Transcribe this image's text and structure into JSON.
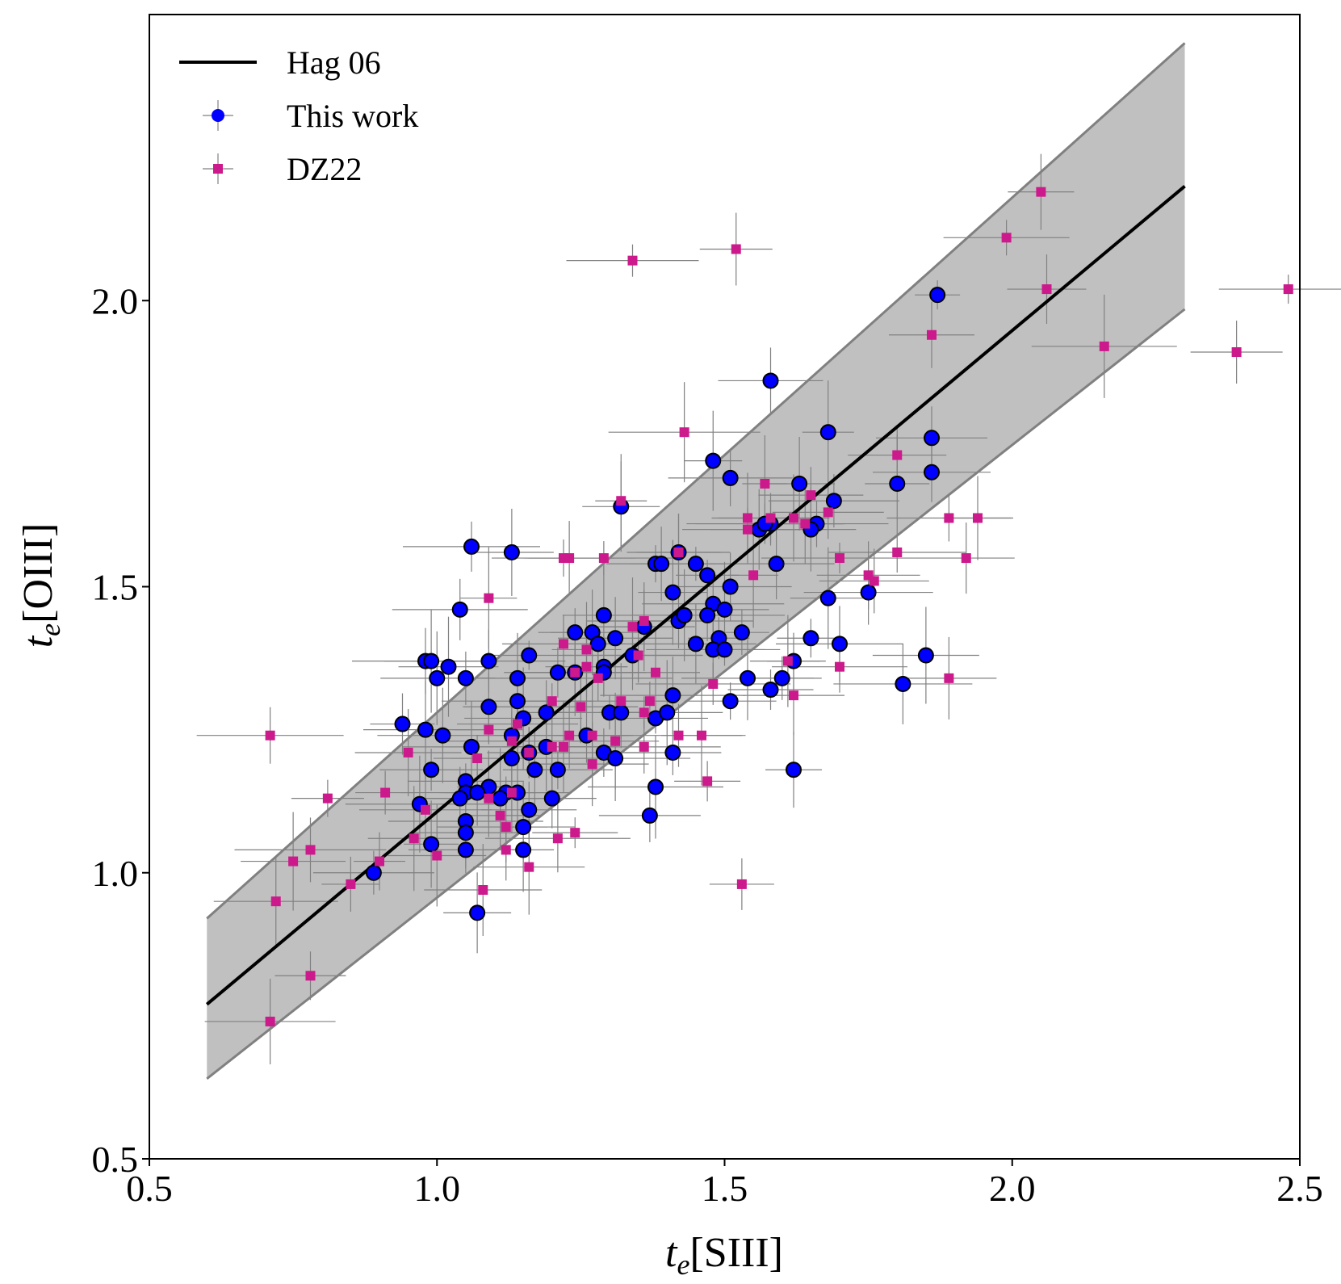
{
  "chart_data": {
    "type": "scatter",
    "title": "",
    "xlabel": {
      "var": "t",
      "sub": "e",
      "rest": "[SIII]"
    },
    "ylabel": {
      "var": "t",
      "sub": "e",
      "rest": "[OIII]"
    },
    "xlim": [
      0.5,
      2.5
    ],
    "ylim": [
      0.5,
      2.5
    ],
    "xticks": [
      0.5,
      1.0,
      1.5,
      2.0,
      2.5
    ],
    "xtick_labels": [
      "0.5",
      "1.0",
      "1.5",
      "2.0",
      "2.5"
    ],
    "yticks": [
      0.5,
      1.0,
      1.5,
      2.0
    ],
    "ytick_labels": [
      "0.5",
      "1.0",
      "1.5",
      "2.0"
    ],
    "grid": false,
    "legend_position": "top-left",
    "colors": {
      "band": "#c0c0c0",
      "band_edge": "#808080",
      "relation": "#000000",
      "this_work": "#0000ff",
      "dz22": "#cc1a8c",
      "errorbar": "#808080"
    },
    "relation": {
      "name": "Hag 06",
      "x": [
        0.6,
        2.3
      ],
      "y": [
        0.77,
        2.2
      ],
      "band_upper": [
        0.92,
        2.45
      ],
      "band_lower": [
        0.64,
        1.985
      ]
    },
    "series": [
      {
        "name": "This work",
        "marker": "circle",
        "points": [
          [
            1.87,
            2.01
          ],
          [
            1.58,
            1.86
          ],
          [
            1.68,
            1.77
          ],
          [
            1.86,
            1.76
          ],
          [
            1.48,
            1.72
          ],
          [
            1.86,
            1.7
          ],
          [
            1.8,
            1.68
          ],
          [
            1.51,
            1.69
          ],
          [
            1.63,
            1.68
          ],
          [
            1.69,
            1.65
          ],
          [
            1.32,
            1.64
          ],
          [
            1.06,
            1.57
          ],
          [
            1.13,
            1.56
          ],
          [
            1.66,
            1.61
          ],
          [
            1.65,
            1.6
          ],
          [
            1.58,
            1.61
          ],
          [
            1.56,
            1.6
          ],
          [
            1.57,
            1.61
          ],
          [
            1.42,
            1.56
          ],
          [
            1.38,
            1.54
          ],
          [
            1.39,
            1.54
          ],
          [
            1.45,
            1.54
          ],
          [
            1.59,
            1.54
          ],
          [
            1.47,
            1.52
          ],
          [
            1.51,
            1.5
          ],
          [
            1.41,
            1.49
          ],
          [
            1.75,
            1.49
          ],
          [
            1.68,
            1.48
          ],
          [
            1.04,
            1.46
          ],
          [
            1.29,
            1.45
          ],
          [
            1.48,
            1.47
          ],
          [
            1.5,
            1.46
          ],
          [
            1.42,
            1.44
          ],
          [
            1.43,
            1.45
          ],
          [
            1.47,
            1.45
          ],
          [
            1.36,
            1.43
          ],
          [
            1.24,
            1.42
          ],
          [
            1.27,
            1.42
          ],
          [
            1.53,
            1.42
          ],
          [
            1.31,
            1.41
          ],
          [
            1.49,
            1.41
          ],
          [
            1.45,
            1.4
          ],
          [
            1.65,
            1.41
          ],
          [
            1.7,
            1.4
          ],
          [
            1.28,
            1.4
          ],
          [
            1.48,
            1.39
          ],
          [
            1.5,
            1.39
          ],
          [
            1.34,
            1.38
          ],
          [
            1.16,
            1.38
          ],
          [
            0.98,
            1.37
          ],
          [
            0.99,
            1.37
          ],
          [
            1.09,
            1.37
          ],
          [
            1.02,
            1.36
          ],
          [
            1.29,
            1.36
          ],
          [
            1.85,
            1.38
          ],
          [
            1.62,
            1.37
          ],
          [
            1.0,
            1.34
          ],
          [
            1.05,
            1.34
          ],
          [
            1.14,
            1.34
          ],
          [
            1.21,
            1.35
          ],
          [
            1.24,
            1.35
          ],
          [
            1.29,
            1.35
          ],
          [
            1.54,
            1.34
          ],
          [
            1.6,
            1.34
          ],
          [
            1.81,
            1.33
          ],
          [
            1.58,
            1.32
          ],
          [
            1.41,
            1.31
          ],
          [
            1.51,
            1.3
          ],
          [
            1.14,
            1.3
          ],
          [
            1.3,
            1.28
          ],
          [
            1.32,
            1.28
          ],
          [
            1.38,
            1.27
          ],
          [
            1.09,
            1.29
          ],
          [
            1.4,
            1.28
          ],
          [
            1.19,
            1.28
          ],
          [
            1.15,
            1.27
          ],
          [
            0.94,
            1.26
          ],
          [
            0.98,
            1.25
          ],
          [
            1.13,
            1.24
          ],
          [
            1.01,
            1.24
          ],
          [
            1.26,
            1.24
          ],
          [
            1.06,
            1.22
          ],
          [
            1.16,
            1.21
          ],
          [
            1.19,
            1.22
          ],
          [
            1.29,
            1.21
          ],
          [
            1.31,
            1.2
          ],
          [
            1.41,
            1.21
          ],
          [
            1.13,
            1.2
          ],
          [
            0.99,
            1.18
          ],
          [
            1.17,
            1.18
          ],
          [
            1.21,
            1.18
          ],
          [
            1.62,
            1.18
          ],
          [
            1.05,
            1.16
          ],
          [
            1.09,
            1.15
          ],
          [
            1.12,
            1.14
          ],
          [
            1.14,
            1.14
          ],
          [
            1.05,
            1.14
          ],
          [
            1.07,
            1.14
          ],
          [
            1.38,
            1.15
          ],
          [
            1.04,
            1.13
          ],
          [
            1.11,
            1.13
          ],
          [
            1.2,
            1.13
          ],
          [
            0.97,
            1.12
          ],
          [
            1.16,
            1.11
          ],
          [
            1.05,
            1.09
          ],
          [
            1.37,
            1.1
          ],
          [
            1.15,
            1.08
          ],
          [
            1.05,
            1.07
          ],
          [
            0.99,
            1.05
          ],
          [
            1.05,
            1.04
          ],
          [
            1.15,
            1.04
          ],
          [
            0.89,
            1.0
          ],
          [
            1.07,
            0.93
          ]
        ]
      },
      {
        "name": "DZ22",
        "marker": "square",
        "points": [
          [
            2.05,
            2.19
          ],
          [
            1.99,
            2.11
          ],
          [
            1.52,
            2.09
          ],
          [
            1.34,
            2.07
          ],
          [
            2.06,
            2.02
          ],
          [
            2.48,
            2.02
          ],
          [
            1.86,
            1.94
          ],
          [
            2.16,
            1.92
          ],
          [
            2.39,
            1.91
          ],
          [
            1.43,
            1.77
          ],
          [
            1.8,
            1.73
          ],
          [
            1.57,
            1.68
          ],
          [
            1.65,
            1.66
          ],
          [
            1.32,
            1.65
          ],
          [
            1.68,
            1.63
          ],
          [
            1.54,
            1.62
          ],
          [
            1.58,
            1.62
          ],
          [
            1.62,
            1.62
          ],
          [
            1.89,
            1.62
          ],
          [
            1.94,
            1.62
          ],
          [
            1.54,
            1.6
          ],
          [
            1.64,
            1.61
          ],
          [
            1.8,
            1.56
          ],
          [
            1.42,
            1.56
          ],
          [
            1.22,
            1.55
          ],
          [
            1.23,
            1.55
          ],
          [
            1.29,
            1.55
          ],
          [
            1.92,
            1.55
          ],
          [
            1.7,
            1.55
          ],
          [
            1.75,
            1.52
          ],
          [
            1.55,
            1.52
          ],
          [
            1.76,
            1.51
          ],
          [
            1.09,
            1.48
          ],
          [
            1.36,
            1.44
          ],
          [
            1.34,
            1.43
          ],
          [
            1.22,
            1.4
          ],
          [
            1.26,
            1.39
          ],
          [
            1.35,
            1.38
          ],
          [
            1.61,
            1.37
          ],
          [
            1.7,
            1.36
          ],
          [
            1.26,
            1.36
          ],
          [
            1.24,
            1.35
          ],
          [
            1.38,
            1.35
          ],
          [
            1.28,
            1.34
          ],
          [
            1.89,
            1.34
          ],
          [
            1.48,
            1.33
          ],
          [
            1.62,
            1.31
          ],
          [
            1.37,
            1.3
          ],
          [
            1.32,
            1.3
          ],
          [
            1.2,
            1.3
          ],
          [
            1.25,
            1.29
          ],
          [
            1.36,
            1.28
          ],
          [
            1.14,
            1.26
          ],
          [
            1.09,
            1.25
          ],
          [
            1.23,
            1.24
          ],
          [
            1.27,
            1.24
          ],
          [
            1.42,
            1.24
          ],
          [
            1.46,
            1.24
          ],
          [
            1.13,
            1.23
          ],
          [
            1.31,
            1.23
          ],
          [
            0.71,
            1.24
          ],
          [
            1.2,
            1.22
          ],
          [
            1.36,
            1.22
          ],
          [
            1.22,
            1.22
          ],
          [
            1.16,
            1.21
          ],
          [
            0.95,
            1.21
          ],
          [
            1.07,
            1.2
          ],
          [
            1.27,
            1.19
          ],
          [
            0.91,
            1.14
          ],
          [
            1.13,
            1.14
          ],
          [
            1.47,
            1.16
          ],
          [
            1.09,
            1.13
          ],
          [
            0.81,
            1.13
          ],
          [
            0.98,
            1.11
          ],
          [
            1.11,
            1.1
          ],
          [
            1.12,
            1.08
          ],
          [
            1.24,
            1.07
          ],
          [
            1.21,
            1.06
          ],
          [
            0.96,
            1.06
          ],
          [
            0.78,
            1.04
          ],
          [
            1.0,
            1.03
          ],
          [
            1.12,
            1.04
          ],
          [
            0.75,
            1.02
          ],
          [
            0.9,
            1.02
          ],
          [
            1.16,
            1.01
          ],
          [
            0.85,
            0.98
          ],
          [
            1.08,
            0.97
          ],
          [
            1.53,
            0.98
          ],
          [
            0.72,
            0.95
          ],
          [
            0.78,
            0.82
          ],
          [
            0.71,
            0.74
          ]
        ]
      }
    ]
  }
}
